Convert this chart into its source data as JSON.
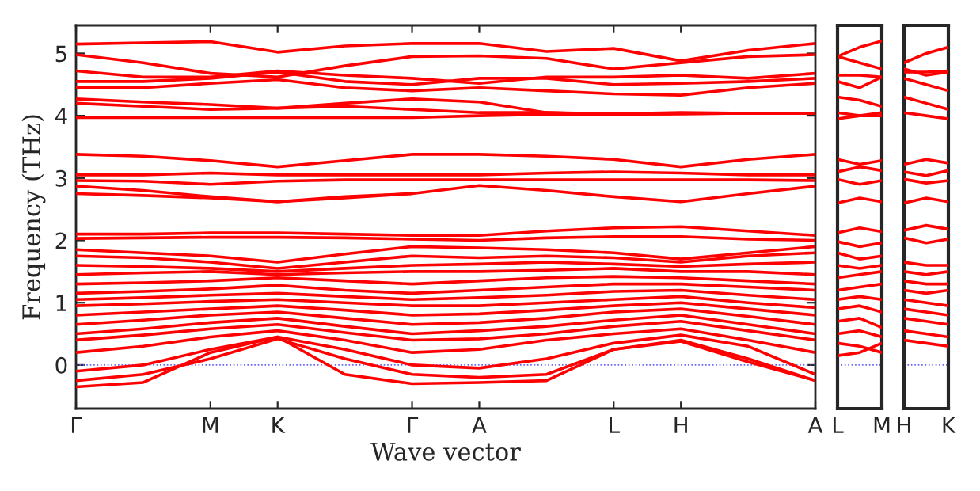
{
  "chart_data": [
    {
      "type": "line",
      "ylabel": "Frequency (THz)",
      "xlabel": "Wave vector",
      "ylim": [
        -0.7,
        5.45
      ],
      "yticks": [
        0,
        1,
        2,
        3,
        4,
        5
      ],
      "legend": false,
      "ref_lines": [
        {
          "axis": "y",
          "value": 0,
          "label": null,
          "color": "#6666ff",
          "line_style": "dotted"
        }
      ],
      "categories": [
        "Γ",
        null,
        "M",
        "K",
        null,
        "Γ",
        "A",
        null,
        "L",
        "H",
        null,
        "A"
      ],
      "series": [
        {
          "color": "#ff0000",
          "values": [
            5.15,
            5.17,
            5.19,
            5.02,
            5.12,
            5.16,
            5.16,
            5.03,
            5.08,
            4.88,
            5.05,
            5.16
          ]
        },
        {
          "color": "#ff0000",
          "values": [
            4.98,
            4.85,
            4.68,
            4.62,
            4.8,
            4.95,
            4.96,
            4.92,
            4.75,
            4.85,
            4.95,
            4.98
          ]
        },
        {
          "color": "#ff0000",
          "values": [
            4.72,
            4.62,
            4.62,
            4.72,
            4.65,
            4.6,
            4.52,
            4.62,
            4.62,
            4.65,
            4.6,
            4.68
          ]
        },
        {
          "color": "#ff0000",
          "values": [
            4.55,
            4.55,
            4.6,
            4.7,
            4.55,
            4.5,
            4.6,
            4.6,
            4.5,
            4.52,
            4.55,
            4.6
          ]
        },
        {
          "color": "#ff0000",
          "values": [
            4.45,
            4.45,
            4.52,
            4.58,
            4.45,
            4.4,
            4.45,
            4.4,
            4.35,
            4.33,
            4.45,
            4.52
          ]
        },
        {
          "color": "#ff0000",
          "values": [
            4.27,
            4.22,
            4.18,
            4.12,
            4.2,
            4.27,
            4.22,
            4.05,
            4.03,
            4.05,
            4.04,
            4.04
          ]
        },
        {
          "color": "#ff0000",
          "values": [
            4.2,
            4.15,
            4.1,
            4.12,
            4.15,
            4.1,
            4.05,
            4.05,
            4.02,
            4.03,
            4.04,
            4.04
          ]
        },
        {
          "color": "#ff0000",
          "values": [
            3.97,
            3.97,
            3.97,
            3.97,
            3.97,
            3.97,
            4.0,
            4.02,
            4.02,
            4.03,
            4.04,
            4.04
          ]
        },
        {
          "color": "#ff0000",
          "values": [
            3.38,
            3.35,
            3.28,
            3.18,
            3.28,
            3.38,
            3.38,
            3.35,
            3.3,
            3.18,
            3.3,
            3.38
          ]
        },
        {
          "color": "#ff0000",
          "values": [
            3.05,
            3.05,
            3.08,
            3.05,
            3.05,
            3.05,
            3.05,
            3.08,
            3.1,
            3.08,
            3.05,
            3.05
          ]
        },
        {
          "color": "#ff0000",
          "values": [
            2.96,
            2.95,
            2.9,
            2.95,
            2.97,
            2.97,
            2.97,
            2.97,
            2.97,
            2.97,
            2.97,
            2.96
          ]
        },
        {
          "color": "#ff0000",
          "values": [
            2.87,
            2.8,
            2.7,
            2.62,
            2.68,
            2.75,
            2.88,
            2.8,
            2.7,
            2.62,
            2.75,
            2.87
          ]
        },
        {
          "color": "#ff0000",
          "values": [
            2.75,
            2.72,
            2.68,
            2.62,
            2.7,
            2.75,
            null,
            null,
            null,
            null,
            null,
            null
          ]
        },
        {
          "color": "#ff0000",
          "values": [
            2.1,
            2.1,
            2.12,
            2.12,
            2.1,
            2.08,
            2.08,
            2.15,
            2.2,
            2.22,
            2.15,
            2.08
          ]
        },
        {
          "color": "#ff0000",
          "values": [
            2.03,
            2.04,
            2.05,
            2.05,
            2.04,
            2.02,
            2.0,
            2.04,
            2.06,
            2.06,
            2.02,
            2.0
          ]
        },
        {
          "color": "#ff0000",
          "values": [
            1.85,
            1.8,
            1.75,
            1.65,
            1.78,
            1.9,
            1.88,
            1.85,
            1.8,
            1.7,
            1.8,
            1.9
          ]
        },
        {
          "color": "#ff0000",
          "values": [
            1.75,
            1.72,
            1.65,
            1.55,
            1.65,
            1.75,
            1.72,
            1.75,
            1.72,
            1.65,
            1.75,
            1.8
          ]
        },
        {
          "color": "#ff0000",
          "values": [
            1.6,
            1.58,
            1.55,
            1.5,
            1.55,
            1.6,
            1.62,
            1.65,
            1.62,
            1.58,
            1.62,
            1.65
          ]
        },
        {
          "color": "#ff0000",
          "values": [
            1.45,
            1.48,
            1.5,
            1.45,
            1.48,
            1.5,
            1.5,
            1.52,
            1.55,
            1.5,
            1.5,
            1.45
          ]
        },
        {
          "color": "#ff0000",
          "values": [
            1.3,
            1.32,
            1.35,
            1.4,
            1.35,
            1.3,
            1.35,
            1.4,
            1.42,
            1.4,
            1.35,
            1.3
          ]
        },
        {
          "color": "#ff0000",
          "values": [
            1.15,
            1.18,
            1.22,
            1.28,
            1.2,
            1.15,
            1.2,
            1.25,
            1.3,
            1.3,
            1.25,
            1.2
          ]
        },
        {
          "color": "#ff0000",
          "values": [
            1.05,
            1.08,
            1.12,
            1.15,
            1.1,
            1.05,
            1.08,
            1.12,
            1.18,
            1.2,
            1.12,
            1.05
          ]
        },
        {
          "color": "#ff0000",
          "values": [
            0.95,
            0.98,
            1.02,
            1.05,
            1.0,
            0.95,
            0.95,
            1.0,
            1.05,
            1.1,
            1.0,
            0.92
          ]
        },
        {
          "color": "#ff0000",
          "values": [
            0.8,
            0.85,
            0.9,
            0.95,
            0.88,
            0.8,
            0.82,
            0.88,
            0.95,
            1.0,
            0.9,
            0.8
          ]
        },
        {
          "color": "#ff0000",
          "values": [
            0.65,
            0.72,
            0.8,
            0.85,
            0.75,
            0.65,
            0.68,
            0.75,
            0.85,
            0.9,
            0.78,
            0.65
          ]
        },
        {
          "color": "#ff0000",
          "values": [
            0.5,
            0.58,
            0.68,
            0.75,
            0.62,
            0.5,
            0.55,
            0.62,
            0.72,
            0.8,
            0.65,
            0.5
          ]
        },
        {
          "color": "#ff0000",
          "values": [
            0.4,
            0.48,
            0.58,
            0.65,
            0.52,
            0.4,
            0.42,
            0.5,
            0.62,
            0.7,
            0.55,
            0.4
          ]
        },
        {
          "color": "#ff0000",
          "values": [
            0.2,
            0.3,
            0.45,
            0.55,
            0.4,
            0.2,
            0.25,
            0.4,
            0.5,
            0.58,
            0.4,
            0.2
          ]
        },
        {
          "color": "#ff0000",
          "values": [
            -0.1,
            0.0,
            0.25,
            0.45,
            0.25,
            0.0,
            -0.05,
            0.1,
            0.35,
            0.48,
            0.3,
            -0.15
          ]
        },
        {
          "color": "#ff0000",
          "values": [
            -0.25,
            -0.15,
            0.1,
            0.42,
            0.1,
            -0.15,
            -0.2,
            -0.15,
            0.25,
            0.4,
            0.1,
            -0.25
          ]
        },
        {
          "color": "#ff0000",
          "values": [
            -0.35,
            -0.28,
            0.2,
            0.45,
            -0.15,
            -0.3,
            -0.28,
            -0.25,
            0.25,
            0.38,
            0.05,
            -0.25
          ]
        }
      ]
    },
    {
      "type": "line",
      "ylim": [
        -0.7,
        5.45
      ],
      "tick_labels": "x",
      "legend": false,
      "ref_lines": [
        {
          "axis": "y",
          "value": 0,
          "label": null,
          "color": "#6666ff",
          "line_style": "dotted"
        }
      ],
      "categories": [
        "L",
        null,
        "M"
      ],
      "series": [
        {
          "color": "#ff0000",
          "values": [
            4.95,
            5.1,
            5.2
          ]
        },
        {
          "color": "#ff0000",
          "values": [
            4.95,
            4.85,
            4.75
          ]
        },
        {
          "color": "#ff0000",
          "values": [
            4.65,
            4.65,
            4.62
          ]
        },
        {
          "color": "#ff0000",
          "values": [
            4.55,
            4.45,
            4.62
          ]
        },
        {
          "color": "#ff0000",
          "values": [
            4.3,
            4.25,
            4.15
          ]
        },
        {
          "color": "#ff0000",
          "values": [
            4.05,
            4.0,
            4.0
          ]
        },
        {
          "color": "#ff0000",
          "values": [
            3.95,
            4.0,
            4.05
          ]
        },
        {
          "color": "#ff0000",
          "values": [
            3.3,
            3.22,
            3.28
          ]
        },
        {
          "color": "#ff0000",
          "values": [
            3.1,
            3.18,
            3.12
          ]
        },
        {
          "color": "#ff0000",
          "values": [
            2.98,
            2.9,
            2.96
          ]
        },
        {
          "color": "#ff0000",
          "values": [
            2.6,
            2.68,
            2.62
          ]
        },
        {
          "color": "#ff0000",
          "values": [
            2.12,
            2.2,
            2.14
          ]
        },
        {
          "color": "#ff0000",
          "values": [
            1.98,
            1.9,
            1.96
          ]
        },
        {
          "color": "#ff0000",
          "values": [
            1.8,
            1.7,
            1.75
          ]
        },
        {
          "color": "#ff0000",
          "values": [
            1.6,
            1.55,
            1.6
          ]
        },
        {
          "color": "#ff0000",
          "values": [
            1.4,
            1.45,
            1.5
          ]
        },
        {
          "color": "#ff0000",
          "values": [
            1.2,
            1.25,
            1.3
          ]
        },
        {
          "color": "#ff0000",
          "values": [
            1.05,
            1.1,
            1.05
          ]
        },
        {
          "color": "#ff0000",
          "values": [
            0.9,
            0.95,
            0.85
          ]
        },
        {
          "color": "#ff0000",
          "values": [
            0.7,
            0.75,
            0.6
          ]
        },
        {
          "color": "#ff0000",
          "values": [
            0.5,
            0.55,
            0.45
          ]
        },
        {
          "color": "#ff0000",
          "values": [
            0.35,
            0.3,
            0.2
          ]
        },
        {
          "color": "#ff0000",
          "values": [
            0.15,
            0.2,
            0.35
          ]
        }
      ]
    },
    {
      "type": "line",
      "ylim": [
        -0.7,
        5.45
      ],
      "tick_labels": "x",
      "legend": false,
      "ref_lines": [
        {
          "axis": "y",
          "value": 0,
          "label": null,
          "color": "#6666ff",
          "line_style": "dotted"
        }
      ],
      "categories": [
        "H",
        null,
        "K"
      ],
      "series": [
        {
          "color": "#ff0000",
          "values": [
            4.85,
            5.0,
            5.1
          ]
        },
        {
          "color": "#ff0000",
          "values": [
            4.75,
            4.65,
            4.7
          ]
        },
        {
          "color": "#ff0000",
          "values": [
            4.7,
            4.7,
            4.72
          ]
        },
        {
          "color": "#ff0000",
          "values": [
            4.6,
            4.5,
            4.4
          ]
        },
        {
          "color": "#ff0000",
          "values": [
            4.3,
            4.2,
            4.1
          ]
        },
        {
          "color": "#ff0000",
          "values": [
            4.05,
            4.0,
            3.95
          ]
        },
        {
          "color": "#ff0000",
          "values": [
            3.22,
            3.3,
            3.24
          ]
        },
        {
          "color": "#ff0000",
          "values": [
            3.1,
            3.04,
            3.12
          ]
        },
        {
          "color": "#ff0000",
          "values": [
            2.98,
            2.92,
            2.96
          ]
        },
        {
          "color": "#ff0000",
          "values": [
            2.6,
            2.68,
            2.62
          ]
        },
        {
          "color": "#ff0000",
          "values": [
            2.16,
            2.24,
            2.18
          ]
        },
        {
          "color": "#ff0000",
          "values": [
            2.04,
            1.96,
            2.02
          ]
        },
        {
          "color": "#ff0000",
          "values": [
            1.65,
            1.6,
            1.6
          ]
        },
        {
          "color": "#ff0000",
          "values": [
            1.5,
            1.45,
            1.5
          ]
        },
        {
          "color": "#ff0000",
          "values": [
            1.35,
            1.3,
            1.3
          ]
        },
        {
          "color": "#ff0000",
          "values": [
            1.2,
            1.15,
            1.2
          ]
        },
        {
          "color": "#ff0000",
          "values": [
            1.05,
            1.0,
            0.95
          ]
        },
        {
          "color": "#ff0000",
          "values": [
            0.9,
            0.85,
            0.8
          ]
        },
        {
          "color": "#ff0000",
          "values": [
            0.75,
            0.7,
            0.65
          ]
        },
        {
          "color": "#ff0000",
          "values": [
            0.55,
            0.5,
            0.45
          ]
        },
        {
          "color": "#ff0000",
          "values": [
            0.4,
            0.35,
            0.3
          ]
        }
      ]
    }
  ]
}
